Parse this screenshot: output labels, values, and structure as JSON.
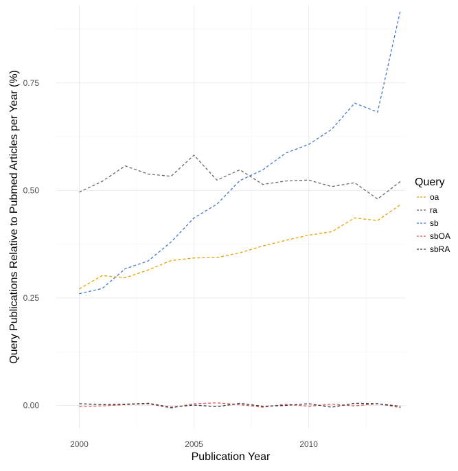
{
  "chart_data": {
    "type": "line",
    "xlabel": "Publication Year",
    "ylabel": "Query Publications Relative to Pubmed Articles per Year (%)",
    "x_ticks": [
      "2000",
      "2005",
      "2010"
    ],
    "y_ticks": [
      "0.00",
      "0.25",
      "0.50",
      "0.75"
    ],
    "xlim": [
      1999,
      2014.2
    ],
    "ylim": [
      -0.055,
      0.93
    ],
    "grid": true,
    "legend": {
      "title": "Query",
      "position": "right"
    },
    "x": [
      2000,
      2001,
      2002,
      2003,
      2004,
      2005,
      2006,
      2007,
      2008,
      2009,
      2010,
      2011,
      2012,
      2013,
      2014
    ],
    "series": [
      {
        "name": "oa",
        "color": "#E69F00",
        "values": [
          0.271,
          0.302,
          0.297,
          0.315,
          0.337,
          0.343,
          0.344,
          0.355,
          0.371,
          0.384,
          0.396,
          0.404,
          0.436,
          0.43,
          0.467
        ]
      },
      {
        "name": "ra",
        "color": "#666666",
        "values": [
          0.496,
          0.521,
          0.557,
          0.538,
          0.533,
          0.582,
          0.524,
          0.548,
          0.514,
          0.522,
          0.524,
          0.509,
          0.518,
          0.48,
          0.521
        ]
      },
      {
        "name": "sb",
        "color": "#4477CC",
        "values": [
          0.26,
          0.272,
          0.318,
          0.336,
          0.38,
          0.436,
          0.468,
          0.523,
          0.548,
          0.587,
          0.607,
          0.642,
          0.703,
          0.682,
          0.92
        ]
      },
      {
        "name": "sbOA",
        "color": "#E05050",
        "values": [
          -0.003,
          -0.001,
          0.002,
          0.004,
          -0.006,
          0.004,
          0.006,
          0.002,
          -0.004,
          0.003,
          -0.002,
          0.003,
          -0.001,
          0.004,
          -0.005
        ]
      },
      {
        "name": "sbRA",
        "color": "#333333",
        "values": [
          0.004,
          0.002,
          0.003,
          0.005,
          -0.004,
          0.001,
          -0.003,
          0.005,
          -0.002,
          0.0,
          0.004,
          -0.004,
          0.005,
          0.004,
          -0.002
        ]
      }
    ]
  }
}
